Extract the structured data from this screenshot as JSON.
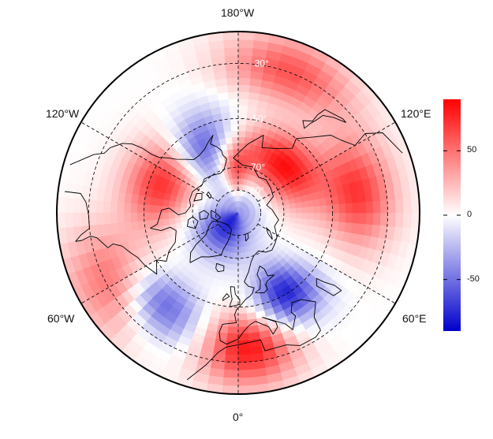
{
  "map": {
    "projection": "north polar stereographic",
    "lon_labels": {
      "top": "180°W",
      "upper_left": "120°W",
      "upper_right": "120°E",
      "lower_left": "60°W",
      "lower_right": "60°E",
      "bottom": "0°"
    },
    "lat_labels": [
      "30°",
      "50°",
      "70°",
      "80°"
    ],
    "graticule_latitudes": [
      30,
      50,
      70,
      80
    ],
    "graticule_longitudes_deg": [
      0,
      60,
      120,
      180,
      240,
      300
    ],
    "colors": {
      "negative": "#0000cc",
      "zero": "#ffffff",
      "positive": "#ff0000",
      "coast": "#000000",
      "grid": "#000000"
    }
  },
  "colorbar": {
    "range": [
      -90,
      90
    ],
    "ticks": [
      {
        "value": 50,
        "label": "50"
      },
      {
        "value": 0,
        "label": "0"
      },
      {
        "value": -50,
        "label": "-50"
      }
    ]
  },
  "field_pattern": {
    "description_of_values": "anomaly field, positive red, negative blue",
    "zonal_wave": [
      {
        "from_lon": 0,
        "to_lon": 30,
        "sign": "+"
      },
      {
        "from_lon": 30,
        "to_lon": 60,
        "sign": "-"
      },
      {
        "from_lon": 60,
        "to_lon": 150,
        "sign": "+"
      },
      {
        "from_lon": 150,
        "to_lon": 195,
        "sign": "+"
      },
      {
        "from_lon": 195,
        "to_lon": 225,
        "sign": "-"
      },
      {
        "from_lon": 225,
        "to_lon": 285,
        "sign": "+"
      },
      {
        "from_lon": 285,
        "to_lon": 330,
        "sign": "-"
      },
      {
        "from_lon": 330,
        "to_lon": 360,
        "sign": "+"
      }
    ],
    "pole_sign": "-"
  }
}
